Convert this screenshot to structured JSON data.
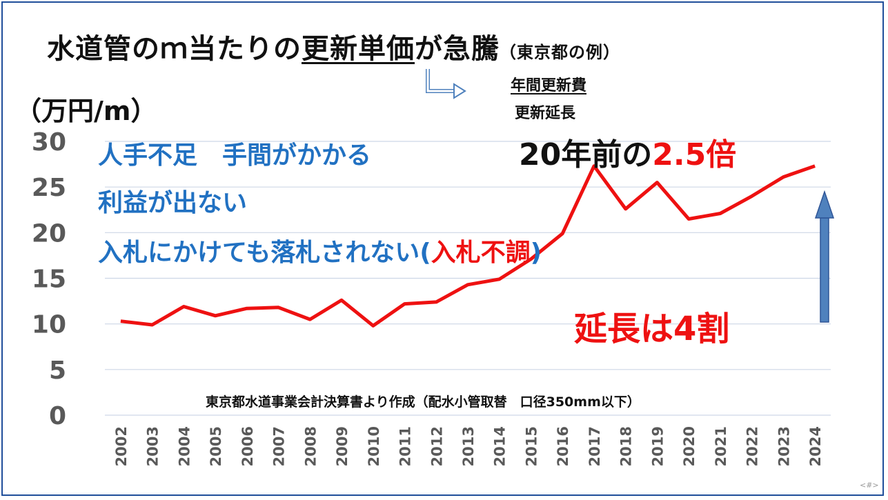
{
  "title": {
    "part1": "水道管のｍ当たりの",
    "underlined": "更新単価",
    "part2": "が急騰",
    "sub": "（東京都の例）"
  },
  "formula": {
    "numerator": "年間更新費",
    "denominator": "更新延長"
  },
  "unit_label": "（万円/m）",
  "notes": {
    "line1": "人手不足　手間がかかる",
    "line2": "利益が出ない",
    "line3": "入札にかけても落札されない(",
    "line3_red": "入札不調",
    "line3_end": ")"
  },
  "comparison": {
    "prefix": "20年前の",
    "value": "2.5倍"
  },
  "length_note": "延長は4割",
  "source": "東京都水道事業会計決算書より作成（配水小管取替　口径350mm以下）",
  "page_number": "<#>",
  "colors": {
    "line": "#ee1111",
    "accent_blue": "#2171c2",
    "arrow": "#4f81bd",
    "gridline": "#cdd6e6",
    "axis_text": "#595959"
  },
  "chart_data": {
    "type": "line",
    "x": [
      "2002",
      "2003",
      "2004",
      "2005",
      "2006",
      "2007",
      "2008",
      "2009",
      "2010",
      "2011",
      "2012",
      "2013",
      "2014",
      "2015",
      "2016",
      "2017",
      "2018",
      "2019",
      "2020",
      "2021",
      "2022",
      "2023",
      "2024"
    ],
    "series": [
      {
        "values": [
          10.3,
          9.9,
          11.9,
          10.9,
          11.7,
          11.8,
          10.5,
          12.6,
          9.8,
          12.2,
          12.4,
          14.3,
          14.9,
          17.1,
          19.9,
          27.3,
          22.6,
          25.5,
          21.5,
          22.1,
          24.0,
          26.1,
          27.3
        ]
      }
    ],
    "y_ticks": [
      0,
      5,
      10,
      15,
      20,
      25,
      30
    ],
    "ylim": [
      0,
      30
    ],
    "grid": true
  }
}
